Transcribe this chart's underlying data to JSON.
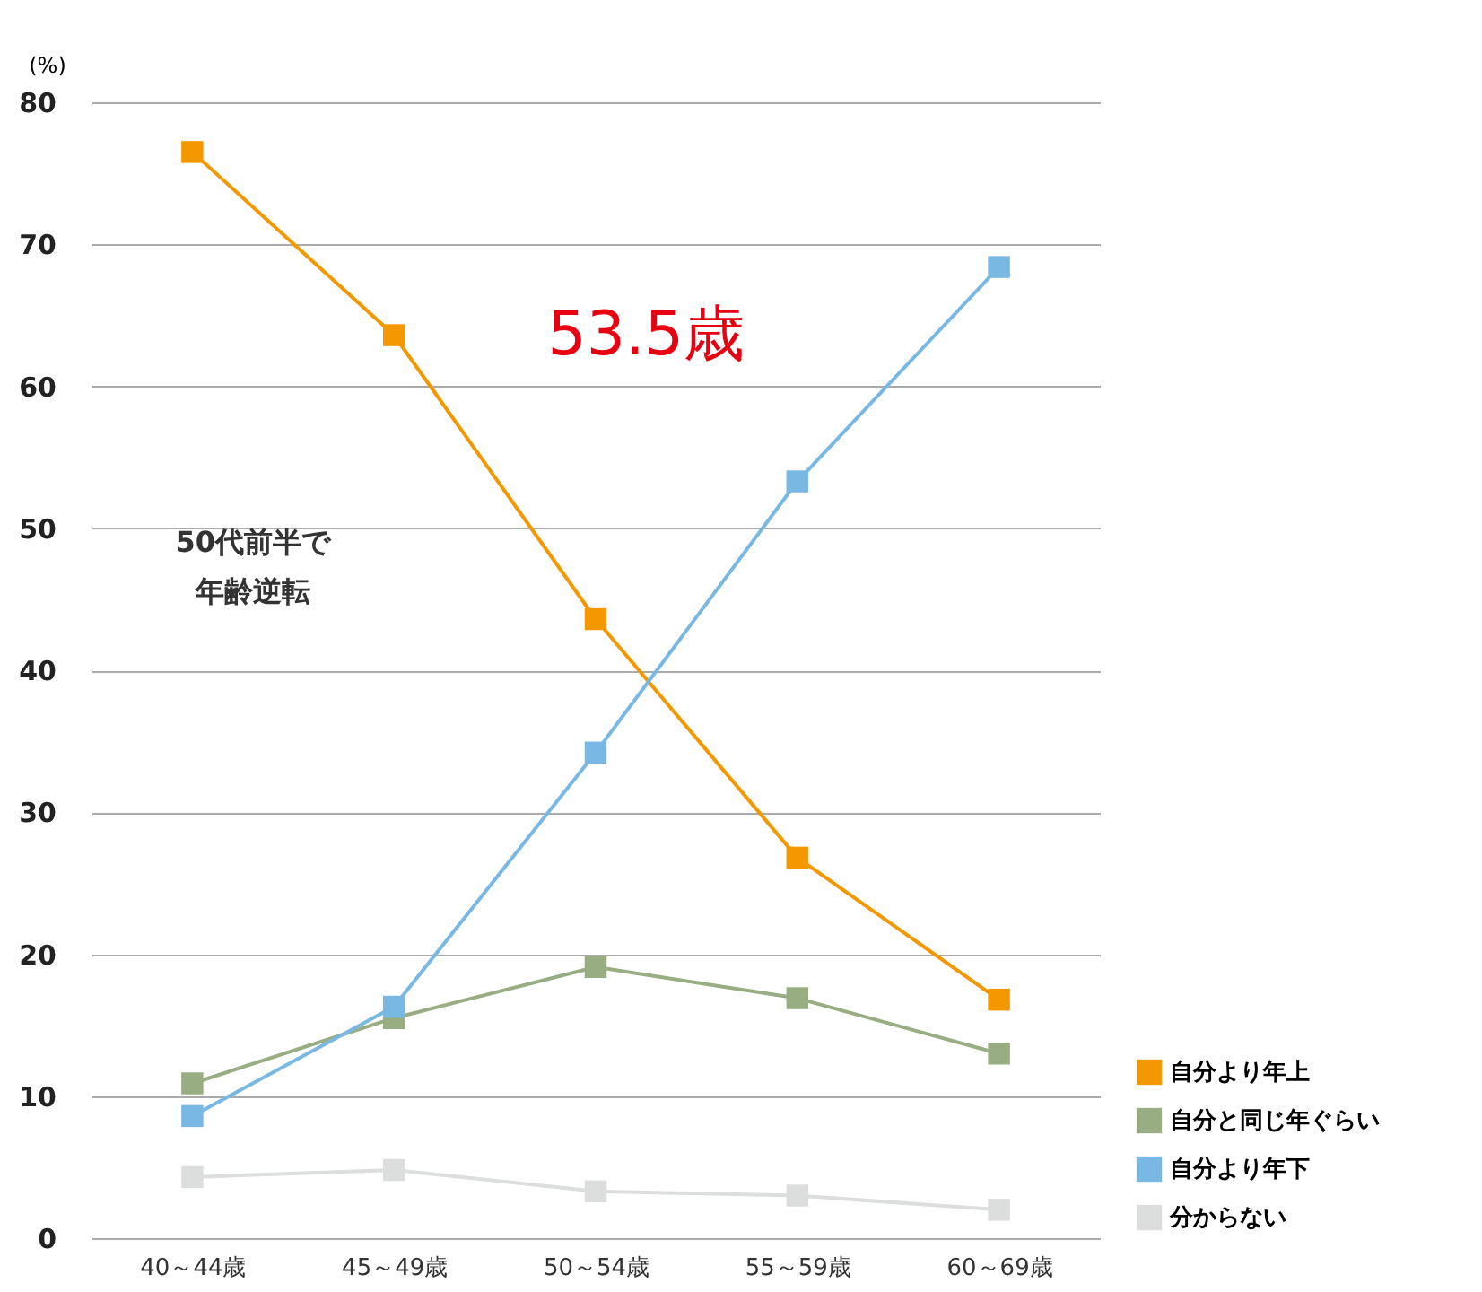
{
  "chart_data": {
    "type": "line",
    "ylabel": "(%)",
    "categories": [
      "40～44歳",
      "45～49歳",
      "50～54歳",
      "55～59歳",
      "60～69歳"
    ],
    "series": [
      {
        "name": "自分より年上",
        "color": "#f39800",
        "values": [
          76.5,
          63.6,
          43.6,
          26.8,
          16.8
        ]
      },
      {
        "name": "自分と同じ年ぐらい",
        "color": "#98ad82",
        "values": [
          10.9,
          15.5,
          19.1,
          16.9,
          13.0
        ]
      },
      {
        "name": "自分より年下",
        "color": "#7ab8e4",
        "values": [
          8.6,
          16.3,
          34.2,
          53.3,
          68.4
        ]
      },
      {
        "name": "分からない",
        "color": "#dcdddd",
        "values": [
          4.3,
          4.8,
          3.3,
          3.0,
          2.0
        ]
      }
    ],
    "ylim": [
      0,
      80
    ],
    "yticks": [
      0,
      10,
      20,
      30,
      40,
      50,
      60,
      70,
      80
    ],
    "grid": "y",
    "legend": "bottom right",
    "marker": "square",
    "line_style": "solid",
    "annotations": [
      "53.5歳",
      "50代前半で",
      "年齢逆転"
    ]
  }
}
